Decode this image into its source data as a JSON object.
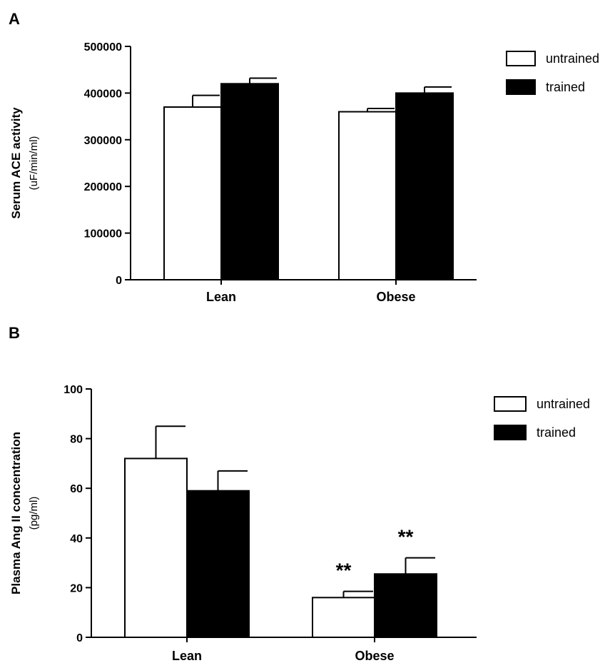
{
  "chart_data": [
    {
      "type": "bar",
      "panel_label": "A",
      "categories": [
        "Lean",
        "Obese"
      ],
      "series": [
        {
          "name": "untrained",
          "color": "#ffffff",
          "values": [
            370000,
            360000
          ],
          "errors": [
            25000,
            7000
          ]
        },
        {
          "name": "trained",
          "color": "#000000",
          "values": [
            420000,
            400000
          ],
          "errors": [
            12000,
            13000
          ]
        }
      ],
      "ylabel": "Serum ACE activity",
      "ylabel_unit": "(uF/min/ml)",
      "ylim": [
        0,
        500000
      ],
      "yticks": [
        0,
        100000,
        200000,
        300000,
        400000,
        500000
      ],
      "ytick_labels": [
        "0",
        "100000",
        "200000",
        "300000",
        "400000",
        "500000"
      ],
      "annotations": [],
      "legend_position": "top-right",
      "grid": false
    },
    {
      "type": "bar",
      "panel_label": "B",
      "categories": [
        "Lean",
        "Obese"
      ],
      "series": [
        {
          "name": "untrained",
          "color": "#ffffff",
          "values": [
            72,
            16
          ],
          "errors": [
            13,
            2.5
          ]
        },
        {
          "name": "trained",
          "color": "#000000",
          "values": [
            59,
            25.5
          ],
          "errors": [
            8,
            6.5
          ]
        }
      ],
      "ylabel": "Plasma Ang II concentration",
      "ylabel_unit": "(pg/ml)",
      "ylim": [
        0,
        100
      ],
      "yticks": [
        0,
        20,
        40,
        60,
        80,
        100
      ],
      "ytick_labels": [
        "0",
        "20",
        "40",
        "60",
        "80",
        "100"
      ],
      "annotations": [
        {
          "text": "**",
          "category": "Obese",
          "series": "untrained"
        },
        {
          "text": "**",
          "category": "Obese",
          "series": "trained"
        }
      ],
      "legend_position": "top-right",
      "grid": false
    }
  ]
}
